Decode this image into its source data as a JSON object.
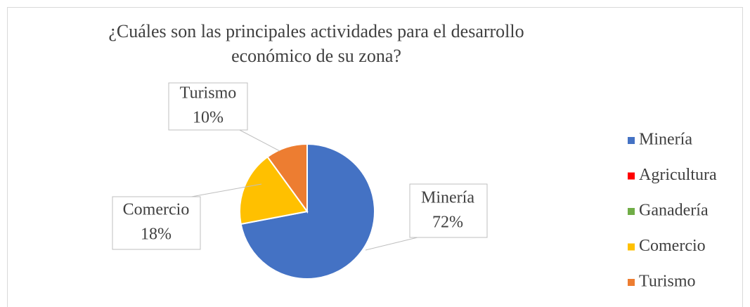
{
  "chart_data": {
    "type": "pie",
    "title": "¿Cuáles son las principales actividades para el desarrollo económico de su zona?",
    "categories": [
      "Minería",
      "Agricultura",
      "Ganadería",
      "Comercio",
      "Turismo"
    ],
    "values": [
      72,
      0,
      0,
      18,
      10
    ],
    "value_labels": [
      "72%",
      null,
      null,
      "18%",
      "10%"
    ],
    "colors": [
      "#4472c4",
      "#ff0000",
      "#70ad47",
      "#ffc000",
      "#ed7d31"
    ],
    "legend": "right"
  }
}
